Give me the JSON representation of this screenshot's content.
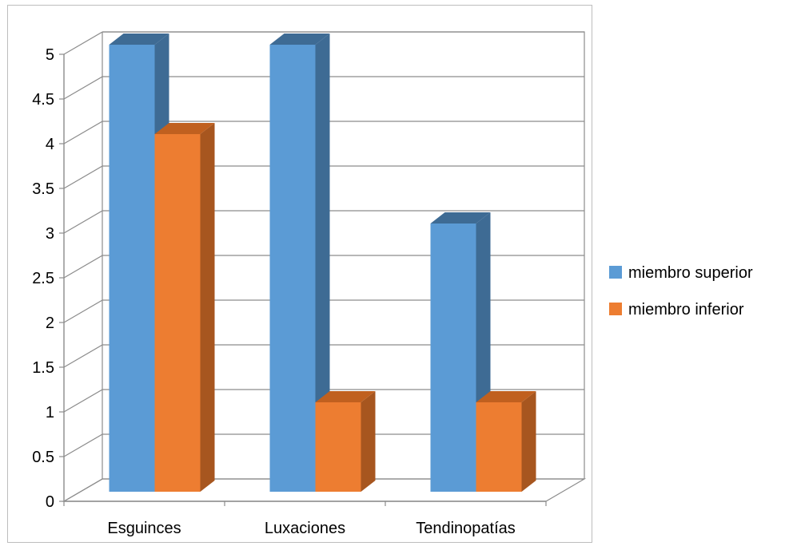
{
  "chart_data": {
    "type": "bar",
    "title": "",
    "xlabel": "",
    "ylabel": "",
    "categories": [
      "Esguinces",
      "Luxaciones",
      "Tendinopatías"
    ],
    "series": [
      {
        "name": "miembro superior",
        "values": [
          5,
          5,
          3
        ],
        "color": "#5b9bd5",
        "side_color": "#3e6b94",
        "top_color": "#3e6b94"
      },
      {
        "name": "miembro inferior",
        "values": [
          4,
          1,
          1
        ],
        "color": "#ed7d31",
        "side_color": "#a7561f",
        "top_color": "#c0601f"
      }
    ],
    "ylim": [
      0,
      5
    ],
    "yticks": [
      "0",
      "0.5",
      "1",
      "1.5",
      "2",
      "2.5",
      "3",
      "3.5",
      "4",
      "4.5",
      "5"
    ],
    "grid": true,
    "legend_position": "right",
    "style": "3d-clustered-column"
  }
}
